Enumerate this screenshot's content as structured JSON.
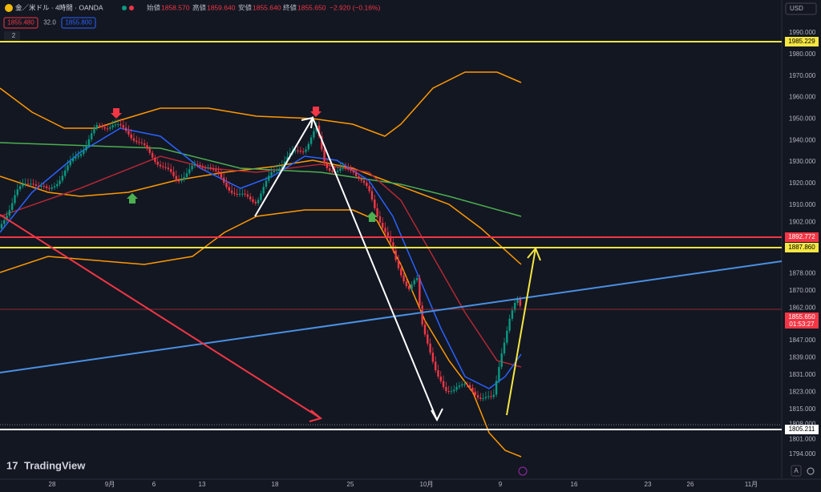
{
  "header": {
    "symbol": "金／米ドル · 4時間 · OANDA",
    "open_label": "始値",
    "open": "1858.570",
    "high_label": "高値",
    "high": "1859.640",
    "low_label": "安値",
    "low": "1855.640",
    "close_label": "終値",
    "close": "1855.650",
    "change": "−2.920 (−0.16%)",
    "bid": "1855.480",
    "spread": "32.0",
    "ask": "1855.800",
    "indicators": "2",
    "currency": "USD"
  },
  "price_axis": {
    "ticks": [
      "1990.000",
      "1980.000",
      "1970.000",
      "1960.000",
      "1950.000",
      "1940.000",
      "1930.000",
      "1920.000",
      "1910.000",
      "1902.000",
      "1878.000",
      "1870.000",
      "1862.000",
      "1847.000",
      "1839.000",
      "1831.000",
      "1823.000",
      "1815.000",
      "1808.000",
      "1801.000",
      "1794.000"
    ]
  },
  "price_labels": {
    "yellow_top": "1985.229",
    "red": "1892.772",
    "yellow": "1887.860",
    "current": "1855.650",
    "countdown": "01:53:27",
    "white": "1805.211"
  },
  "time_axis": {
    "labels": [
      "28",
      "9月",
      "6",
      "13",
      "18",
      "25",
      "10月",
      "9",
      "16",
      "23",
      "26",
      "11月"
    ]
  },
  "footer": {
    "brand": "TradingView",
    "auto": "A"
  }
}
